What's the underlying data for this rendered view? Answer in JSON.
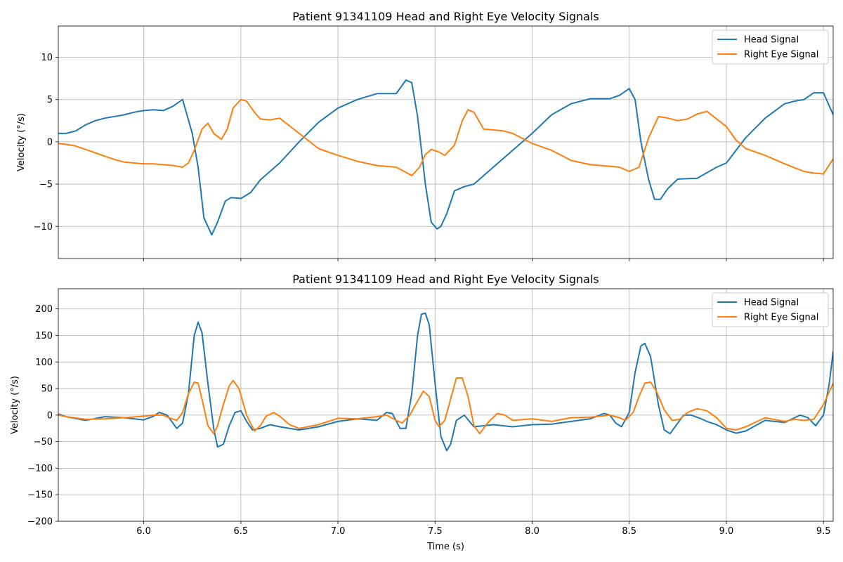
{
  "chart_data": [
    {
      "type": "line",
      "title": "Patient 91341109 Head and Right Eye Velocity Signals",
      "xlabel": "",
      "ylabel": "Velocity (°/s)",
      "xlim": [
        5.56,
        9.55
      ],
      "ylim": [
        -13.8,
        13.7
      ],
      "xticks": [
        6.0,
        6.5,
        7.0,
        7.5,
        8.0,
        8.5,
        9.0,
        9.5
      ],
      "xticklabels": [
        "",
        "",
        "",
        "",
        "",
        "",
        "",
        ""
      ],
      "yticks": [
        -10,
        -5,
        0,
        5,
        10
      ],
      "yticklabels": [
        "−10",
        "−5",
        "0",
        "5",
        "10"
      ],
      "grid": true,
      "legend": "top-right",
      "series": [
        {
          "name": "Head Signal",
          "color": "#1f77b4",
          "x": [
            5.56,
            5.6,
            5.65,
            5.7,
            5.75,
            5.8,
            5.85,
            5.9,
            5.95,
            6.0,
            6.05,
            6.1,
            6.15,
            6.2,
            6.25,
            6.28,
            6.31,
            6.35,
            6.38,
            6.42,
            6.45,
            6.5,
            6.55,
            6.6,
            6.7,
            6.8,
            6.9,
            7.0,
            7.1,
            7.2,
            7.25,
            7.3,
            7.35,
            7.38,
            7.41,
            7.45,
            7.48,
            7.51,
            7.53,
            7.56,
            7.6,
            7.65,
            7.7,
            7.8,
            7.9,
            8.0,
            8.1,
            8.2,
            8.3,
            8.4,
            8.45,
            8.5,
            8.53,
            8.56,
            8.6,
            8.63,
            8.66,
            8.7,
            8.75,
            8.85,
            8.95,
            9.0,
            9.1,
            9.2,
            9.3,
            9.35,
            9.4,
            9.45,
            9.5,
            9.55
          ],
          "y": [
            1.0,
            1.0,
            1.3,
            2.0,
            2.5,
            2.8,
            3.0,
            3.2,
            3.5,
            3.7,
            3.8,
            3.7,
            4.2,
            5.0,
            1.0,
            -3.0,
            -9.0,
            -11.0,
            -9.5,
            -7.0,
            -6.6,
            -6.7,
            -6.0,
            -4.5,
            -2.5,
            0.0,
            2.3,
            4.0,
            5.0,
            5.7,
            5.7,
            5.7,
            7.3,
            7.0,
            3.0,
            -5.0,
            -9.5,
            -10.3,
            -10.0,
            -8.5,
            -5.8,
            -5.3,
            -5.0,
            -3.0,
            -1.0,
            1.0,
            3.2,
            4.5,
            5.1,
            5.1,
            5.5,
            6.3,
            5.0,
            0.0,
            -4.5,
            -6.8,
            -6.8,
            -5.5,
            -4.4,
            -4.3,
            -3.0,
            -2.5,
            0.5,
            2.8,
            4.5,
            4.8,
            5.0,
            5.8,
            5.8,
            3.2
          ]
        },
        {
          "name": "Right Eye Signal",
          "color": "#ff7f0e",
          "x": [
            5.56,
            5.6,
            5.65,
            5.7,
            5.75,
            5.8,
            5.85,
            5.9,
            5.95,
            6.0,
            6.05,
            6.1,
            6.15,
            6.2,
            6.23,
            6.26,
            6.3,
            6.33,
            6.36,
            6.4,
            6.43,
            6.46,
            6.5,
            6.53,
            6.57,
            6.6,
            6.65,
            6.7,
            6.8,
            6.9,
            7.0,
            7.1,
            7.2,
            7.3,
            7.35,
            7.38,
            7.42,
            7.45,
            7.48,
            7.52,
            7.55,
            7.6,
            7.64,
            7.67,
            7.7,
            7.75,
            7.85,
            7.9,
            8.0,
            8.1,
            8.2,
            8.3,
            8.4,
            8.45,
            8.5,
            8.55,
            8.6,
            8.65,
            8.7,
            8.75,
            8.8,
            8.85,
            8.9,
            9.0,
            9.05,
            9.1,
            9.2,
            9.3,
            9.4,
            9.45,
            9.5,
            9.55
          ],
          "y": [
            -0.2,
            -0.3,
            -0.5,
            -0.9,
            -1.3,
            -1.7,
            -2.1,
            -2.4,
            -2.5,
            -2.6,
            -2.6,
            -2.7,
            -2.8,
            -3.0,
            -2.5,
            -1.0,
            1.5,
            2.2,
            1.0,
            0.3,
            1.5,
            4.0,
            5.0,
            4.8,
            3.5,
            2.7,
            2.6,
            2.8,
            1.0,
            -0.8,
            -1.6,
            -2.3,
            -2.8,
            -3.0,
            -3.6,
            -4.0,
            -3.0,
            -1.5,
            -0.9,
            -1.2,
            -1.6,
            -0.4,
            2.5,
            3.8,
            3.5,
            1.5,
            1.3,
            1.0,
            -0.2,
            -1.0,
            -2.2,
            -2.7,
            -2.9,
            -3.0,
            -3.5,
            -3.0,
            0.5,
            3.0,
            2.8,
            2.5,
            2.7,
            3.3,
            3.6,
            1.8,
            0.2,
            -0.8,
            -1.6,
            -2.6,
            -3.5,
            -3.7,
            -3.8,
            -2.0
          ]
        }
      ]
    },
    {
      "type": "line",
      "title": "Patient 91341109 Head and Right Eye Velocity Signals",
      "xlabel": "Time (s)",
      "ylabel": "Velocity (°/s)",
      "xlim": [
        5.56,
        9.55
      ],
      "ylim": [
        -200,
        238
      ],
      "xticks": [
        6.0,
        6.5,
        7.0,
        7.5,
        8.0,
        8.5,
        9.0,
        9.5
      ],
      "xticklabels": [
        "6.0",
        "6.5",
        "7.0",
        "7.5",
        "8.0",
        "8.5",
        "9.0",
        "9.5"
      ],
      "yticks": [
        -200,
        -150,
        -100,
        -50,
        0,
        50,
        100,
        150,
        200
      ],
      "yticklabels": [
        "−200",
        "−150",
        "−100",
        "−50",
        "0",
        "50",
        "100",
        "150",
        "200"
      ],
      "grid": true,
      "legend": "top-right",
      "series": [
        {
          "name": "Head Signal",
          "color": "#1f77b4",
          "x": [
            5.56,
            5.6,
            5.7,
            5.8,
            5.9,
            6.0,
            6.05,
            6.08,
            6.12,
            6.17,
            6.2,
            6.23,
            6.26,
            6.28,
            6.3,
            6.33,
            6.36,
            6.38,
            6.41,
            6.44,
            6.47,
            6.5,
            6.53,
            6.56,
            6.6,
            6.65,
            6.7,
            6.8,
            6.9,
            7.0,
            7.1,
            7.2,
            7.25,
            7.28,
            7.32,
            7.35,
            7.38,
            7.41,
            7.43,
            7.45,
            7.47,
            7.5,
            7.53,
            7.56,
            7.58,
            7.61,
            7.65,
            7.7,
            7.75,
            7.8,
            7.9,
            8.0,
            8.1,
            8.2,
            8.3,
            8.37,
            8.4,
            8.43,
            8.46,
            8.5,
            8.53,
            8.56,
            8.58,
            8.61,
            8.65,
            8.68,
            8.71,
            8.74,
            8.78,
            8.82,
            8.87,
            8.9,
            8.95,
            9.0,
            9.05,
            9.1,
            9.2,
            9.3,
            9.38,
            9.42,
            9.46,
            9.5,
            9.53,
            9.55
          ],
          "y": [
            2,
            -3,
            -10,
            -3,
            -5,
            -9,
            -2,
            5,
            0,
            -25,
            -15,
            40,
            150,
            175,
            155,
            60,
            -25,
            -60,
            -55,
            -20,
            5,
            8,
            -12,
            -28,
            -25,
            -18,
            -22,
            -28,
            -22,
            -12,
            -7,
            -10,
            5,
            3,
            -25,
            -25,
            40,
            150,
            190,
            192,
            170,
            60,
            -40,
            -67,
            -55,
            -10,
            0,
            -22,
            -20,
            -18,
            -22,
            -18,
            -17,
            -12,
            -7,
            3,
            0,
            -15,
            -22,
            5,
            80,
            130,
            135,
            110,
            20,
            -28,
            -35,
            -20,
            0,
            0,
            -7,
            -12,
            -18,
            -28,
            -34,
            -30,
            -10,
            -14,
            0,
            -5,
            -20,
            0,
            60,
            120
          ]
        },
        {
          "name": "Right Eye Signal",
          "color": "#ff7f0e",
          "x": [
            5.56,
            5.6,
            5.7,
            5.8,
            5.9,
            6.0,
            6.05,
            6.1,
            6.13,
            6.17,
            6.2,
            6.23,
            6.26,
            6.28,
            6.3,
            6.33,
            6.36,
            6.38,
            6.41,
            6.44,
            6.46,
            6.49,
            6.53,
            6.57,
            6.6,
            6.63,
            6.67,
            6.7,
            6.75,
            6.8,
            6.9,
            7.0,
            7.1,
            7.2,
            7.25,
            7.3,
            7.33,
            7.37,
            7.4,
            7.44,
            7.47,
            7.5,
            7.52,
            7.55,
            7.58,
            7.61,
            7.64,
            7.67,
            7.7,
            7.73,
            7.77,
            7.82,
            7.86,
            7.9,
            8.0,
            8.1,
            8.2,
            8.3,
            8.4,
            8.45,
            8.48,
            8.52,
            8.55,
            8.58,
            8.61,
            8.64,
            8.68,
            8.72,
            8.76,
            8.8,
            8.85,
            8.9,
            8.95,
            9.0,
            9.05,
            9.1,
            9.2,
            9.3,
            9.35,
            9.4,
            9.45,
            9.5,
            9.55
          ],
          "y": [
            0,
            -3,
            -8,
            -7,
            -5,
            -2,
            0,
            0,
            -5,
            -10,
            5,
            40,
            62,
            60,
            30,
            -20,
            -35,
            -20,
            20,
            55,
            65,
            50,
            0,
            -30,
            -20,
            -2,
            5,
            -2,
            -18,
            -25,
            -18,
            -6,
            -7,
            -3,
            0,
            -10,
            -15,
            0,
            20,
            45,
            35,
            -10,
            -22,
            -10,
            30,
            70,
            70,
            35,
            -20,
            -35,
            -15,
            3,
            0,
            -10,
            -7,
            -12,
            -5,
            -4,
            0,
            -5,
            -10,
            5,
            35,
            60,
            62,
            45,
            10,
            -10,
            -8,
            5,
            12,
            8,
            -5,
            -25,
            -28,
            -22,
            -5,
            -12,
            -8,
            -10,
            -8,
            20,
            60
          ]
        }
      ]
    }
  ]
}
